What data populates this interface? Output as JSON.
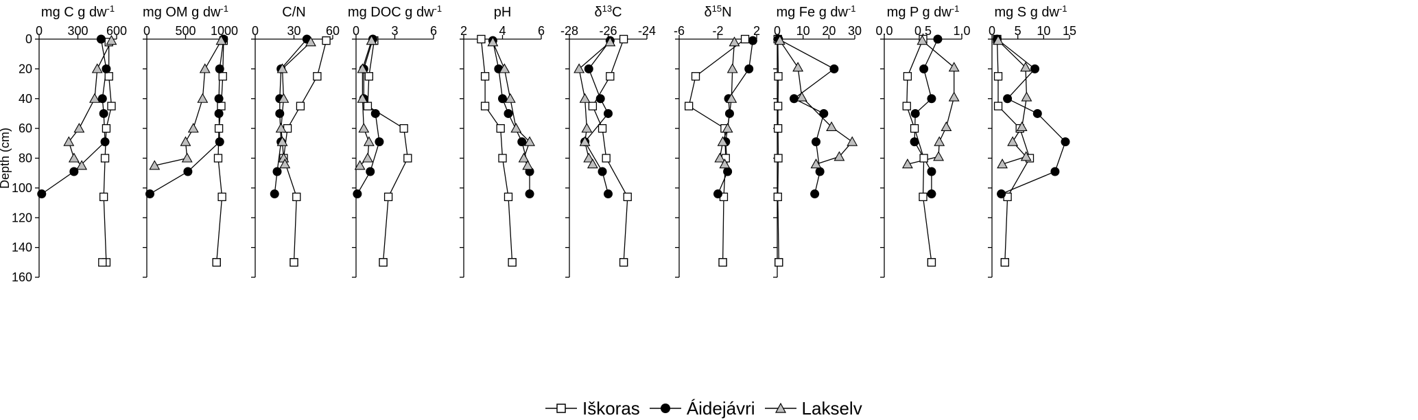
{
  "chart_data": [
    {
      "type": "line",
      "title": "mg C g dw",
      "title_sup": "-1",
      "xlim": [
        0,
        600
      ],
      "xticks": [
        0,
        300,
        600
      ],
      "xtick_labels": [
        "0",
        "300",
        "600"
      ],
      "ylabel": "Depth (cm)",
      "ylim": [
        0,
        160
      ],
      "yticks": [
        0,
        20,
        40,
        60,
        80,
        100,
        120,
        140,
        160
      ],
      "ytick_labels": [
        "0",
        "20",
        "40",
        "60",
        "80",
        "100",
        "120",
        "140",
        "160"
      ],
      "series": [
        {
          "name": "Iškoras",
          "x": [
            540,
            540,
            560,
            520,
            510,
            500,
            520,
            490
          ],
          "y": [
            2,
            25,
            45,
            60,
            80,
            106,
            150,
            150
          ]
        },
        {
          "name": "Áidejávri",
          "x": [
            480,
            520,
            490,
            500,
            510,
            270,
            20
          ],
          "y": [
            0,
            20,
            40,
            50,
            69,
            89,
            104
          ]
        },
        {
          "name": "Lakselv",
          "x": [
            560,
            450,
            430,
            310,
            230,
            270,
            330
          ],
          "y": [
            1,
            20,
            40,
            60,
            69,
            80,
            85
          ]
        }
      ]
    },
    {
      "type": "line",
      "title": "mg OM g dw",
      "title_sup": "-1",
      "xlim": [
        0,
        1000
      ],
      "xticks": [
        0,
        500,
        1000
      ],
      "xtick_labels": [
        "0",
        "500",
        "1000"
      ],
      "ylim": [
        0,
        160
      ],
      "yticks": [
        0,
        20,
        40,
        60,
        80,
        100,
        120,
        140,
        160
      ],
      "series": [
        {
          "name": "Iškoras",
          "x": [
            990,
            980,
            960,
            930,
            920,
            970,
            900,
            900
          ],
          "y": [
            1,
            25,
            45,
            60,
            80,
            106,
            150,
            150
          ]
        },
        {
          "name": "Áidejávri",
          "x": [
            990,
            940,
            930,
            930,
            940,
            530,
            40
          ],
          "y": [
            0,
            20,
            40,
            50,
            69,
            89,
            104
          ]
        },
        {
          "name": "Lakselv",
          "x": [
            960,
            750,
            720,
            600,
            500,
            520,
            100
          ],
          "y": [
            1,
            20,
            40,
            60,
            69,
            80,
            85
          ]
        }
      ]
    },
    {
      "type": "line",
      "title": "C/N",
      "xlim": [
        0,
        60
      ],
      "xticks": [
        0,
        30,
        60
      ],
      "xtick_labels": [
        "0",
        "30",
        "60"
      ],
      "ylim": [
        0,
        160
      ],
      "yticks": [
        0,
        20,
        40,
        60,
        80,
        100,
        120,
        140,
        160
      ],
      "series": [
        {
          "name": "Iškoras",
          "x": [
            55,
            48,
            35,
            25,
            22,
            32,
            30,
            30
          ],
          "y": [
            1,
            25,
            45,
            60,
            80,
            106,
            150,
            150
          ]
        },
        {
          "name": "Áidejávri",
          "x": [
            40,
            20,
            19,
            19,
            20,
            17,
            15
          ],
          "y": [
            0,
            20,
            40,
            50,
            69,
            89,
            104
          ]
        },
        {
          "name": "Lakselv",
          "x": [
            43,
            21,
            22,
            20,
            21,
            22,
            23
          ],
          "y": [
            2,
            20,
            40,
            60,
            69,
            80,
            84
          ]
        }
      ]
    },
    {
      "type": "line",
      "title": "mg DOC g dw",
      "title_sup": "-1",
      "xlim": [
        0,
        6
      ],
      "xticks": [
        0,
        3,
        6
      ],
      "xtick_labels": [
        "0",
        "3",
        "6"
      ],
      "ylim": [
        0,
        160
      ],
      "yticks": [
        0,
        20,
        40,
        60,
        80,
        100,
        120,
        140,
        160
      ],
      "series": [
        {
          "name": "Iškoras",
          "x": [
            1.4,
            1.0,
            0.9,
            3.7,
            4.0,
            2.5,
            2.1,
            2.1
          ],
          "y": [
            1,
            25,
            45,
            60,
            80,
            106,
            150,
            150
          ]
        },
        {
          "name": "Áidejávri",
          "x": [
            1.3,
            0.6,
            0.6,
            1.5,
            1.8,
            1.1,
            0.1
          ],
          "y": [
            0,
            20,
            40,
            50,
            69,
            89,
            104
          ]
        },
        {
          "name": "Lakselv",
          "x": [
            1.2,
            0.5,
            0.5,
            0.6,
            1.0,
            0.9,
            0.3
          ],
          "y": [
            1,
            20,
            40,
            60,
            69,
            80,
            85
          ]
        }
      ]
    },
    {
      "type": "line",
      "title": "pH",
      "xlim": [
        2,
        6
      ],
      "xticks": [
        2,
        4,
        6
      ],
      "xtick_labels": [
        "2",
        "4",
        "6"
      ],
      "ylim": [
        0,
        160
      ],
      "yticks": [
        0,
        20,
        40,
        60,
        80,
        100,
        120,
        140,
        160
      ],
      "series": [
        {
          "name": "Iškoras",
          "x": [
            2.9,
            3.1,
            3.1,
            3.9,
            4.0,
            4.3,
            4.5,
            4.5
          ],
          "y": [
            0,
            25,
            45,
            60,
            80,
            106,
            150,
            150
          ]
        },
        {
          "name": "Áidejávri",
          "x": [
            3.5,
            3.8,
            4.0,
            4.3,
            5.0,
            5.4,
            5.4
          ],
          "y": [
            1,
            20,
            40,
            50,
            69,
            89,
            104
          ]
        },
        {
          "name": "Lakselv",
          "x": [
            3.5,
            4.1,
            4.4,
            4.7,
            5.4,
            5.1,
            5.3
          ],
          "y": [
            2,
            20,
            40,
            60,
            69,
            80,
            85
          ]
        }
      ]
    },
    {
      "type": "line",
      "title": "δ",
      "title_sup": "13",
      "title_suffix": "C",
      "xlim": [
        -28,
        -24
      ],
      "xticks": [
        -28,
        -26,
        -24
      ],
      "xtick_labels": [
        "-28",
        "-26",
        "-24"
      ],
      "ylim": [
        0,
        160
      ],
      "yticks": [
        0,
        20,
        40,
        60,
        80,
        100,
        120,
        140,
        160
      ],
      "series": [
        {
          "name": "Iškoras",
          "x": [
            -25.2,
            -25.9,
            -26.8,
            -26.3,
            -26.1,
            -25.0,
            -25.2,
            -25.2
          ],
          "y": [
            0,
            25,
            45,
            60,
            80,
            106,
            150,
            150
          ]
        },
        {
          "name": "Áidejávri",
          "x": [
            -25.9,
            -27.0,
            -26.4,
            -26.0,
            -27.2,
            -26.3,
            -26.0
          ],
          "y": [
            1,
            20,
            40,
            50,
            69,
            89,
            104
          ]
        },
        {
          "name": "Lakselv",
          "x": [
            -25.9,
            -27.5,
            -27.2,
            -27.1,
            -27.2,
            -27.0,
            -26.8
          ],
          "y": [
            2,
            20,
            40,
            60,
            69,
            80,
            84
          ]
        }
      ]
    },
    {
      "type": "line",
      "title": "δ",
      "title_sup": "15",
      "title_suffix": "N",
      "xlim": [
        -6,
        2
      ],
      "xticks": [
        -6,
        -2,
        2
      ],
      "xtick_labels": [
        "-6",
        "-2",
        "2"
      ],
      "ylim": [
        0,
        160
      ],
      "yticks": [
        0,
        20,
        40,
        60,
        80,
        100,
        120,
        140,
        160
      ],
      "series": [
        {
          "name": "Iškoras",
          "x": [
            0.8,
            -4.3,
            -5.0,
            -1.3,
            -1.2,
            -1.4,
            -1.5,
            -1.5
          ],
          "y": [
            0,
            25,
            45,
            60,
            80,
            106,
            150,
            150
          ]
        },
        {
          "name": "Áidejávri",
          "x": [
            1.6,
            1.2,
            -0.9,
            -0.8,
            -1.2,
            -1.0,
            -2.0
          ],
          "y": [
            1,
            20,
            40,
            50,
            69,
            89,
            104
          ]
        },
        {
          "name": "Lakselv",
          "x": [
            -0.3,
            -0.5,
            -0.6,
            -1.0,
            -1.5,
            -1.8,
            -1.3
          ],
          "y": [
            2,
            20,
            40,
            60,
            69,
            80,
            84
          ]
        }
      ]
    },
    {
      "type": "line",
      "title": "mg Fe g dw",
      "title_sup": "-1",
      "xlim": [
        0,
        30
      ],
      "xticks": [
        0,
        10,
        20,
        30
      ],
      "xtick_labels": [
        "0",
        "10",
        "20",
        "30"
      ],
      "ylim": [
        0,
        160
      ],
      "yticks": [
        0,
        20,
        40,
        60,
        80,
        100,
        120,
        140,
        160
      ],
      "series": [
        {
          "name": "Iškoras",
          "x": [
            0.2,
            0.4,
            0.3,
            0.3,
            0.4,
            0.2,
            0.6,
            0.6
          ],
          "y": [
            0,
            25,
            45,
            60,
            80,
            106,
            150,
            150
          ]
        },
        {
          "name": "Áidejávri",
          "x": [
            0.5,
            22,
            6.5,
            18,
            15,
            16.5,
            14.5
          ],
          "y": [
            0,
            20,
            40,
            50,
            69,
            89,
            104
          ]
        },
        {
          "name": "Lakselv",
          "x": [
            1.0,
            8.0,
            9.5,
            21,
            29,
            24,
            15
          ],
          "y": [
            1,
            19,
            39,
            59,
            69,
            79,
            84
          ]
        }
      ]
    },
    {
      "type": "line",
      "title": "mg P g dw",
      "title_sup": "-1",
      "xlim": [
        0,
        1.0
      ],
      "xticks": [
        0,
        0.5,
        1.0
      ],
      "xtick_labels": [
        "0.0",
        "0.5",
        "1.0"
      ],
      "ylim": [
        0,
        160
      ],
      "yticks": [
        0,
        20,
        40,
        60,
        80,
        100,
        120,
        140,
        160
      ],
      "series": [
        {
          "name": "Iškoras",
          "x": [
            0.5,
            0.3,
            0.29,
            0.39,
            0.51,
            0.5,
            0.61,
            0.61
          ],
          "y": [
            0,
            25,
            45,
            60,
            80,
            106,
            150,
            150
          ]
        },
        {
          "name": "Áidejávri",
          "x": [
            0.69,
            0.51,
            0.61,
            0.4,
            0.39,
            0.61,
            0.61
          ],
          "y": [
            0,
            20,
            40,
            50,
            69,
            89,
            104
          ]
        },
        {
          "name": "Lakselv",
          "x": [
            0.49,
            0.9,
            0.9,
            0.8,
            0.71,
            0.7,
            0.3
          ],
          "y": [
            1,
            19,
            39,
            59,
            69,
            79,
            84
          ]
        }
      ]
    },
    {
      "type": "line",
      "title": "mg S g dw",
      "title_sup": "-1",
      "xlim": [
        0,
        15
      ],
      "xticks": [
        0,
        5,
        10,
        15
      ],
      "xtick_labels": [
        "0",
        "5",
        "10",
        "15"
      ],
      "ylim": [
        0,
        160
      ],
      "yticks": [
        0,
        20,
        40,
        60,
        80,
        100,
        120,
        140,
        160
      ],
      "series": [
        {
          "name": "Iškoras",
          "x": [
            1.0,
            1.2,
            1.2,
            5.4,
            7.3,
            3.0,
            2.5,
            2.5
          ],
          "y": [
            0,
            25,
            45,
            60,
            80,
            106,
            150,
            150
          ]
        },
        {
          "name": "Áidejávri",
          "x": [
            1.0,
            8.3,
            3.0,
            8.8,
            14.2,
            12.2,
            1.8
          ],
          "y": [
            0,
            20,
            40,
            50,
            69,
            89,
            104
          ]
        },
        {
          "name": "Lakselv",
          "x": [
            1.2,
            6.5,
            6.7,
            5.8,
            4.0,
            6.6,
            2.0
          ],
          "y": [
            1,
            19,
            39,
            59,
            69,
            79,
            84
          ]
        }
      ]
    }
  ],
  "legend": {
    "placement": "bottom-center",
    "items": [
      {
        "name": "Iškoras",
        "marker": "square-open"
      },
      {
        "name": "Áidejávri",
        "marker": "circle-filled"
      },
      {
        "name": "Lakselv",
        "marker": "triangle-gray"
      }
    ]
  },
  "colors": {
    "line": "#000000",
    "triangle_fill": "#bfbfbf",
    "open_fill": "#ffffff"
  }
}
